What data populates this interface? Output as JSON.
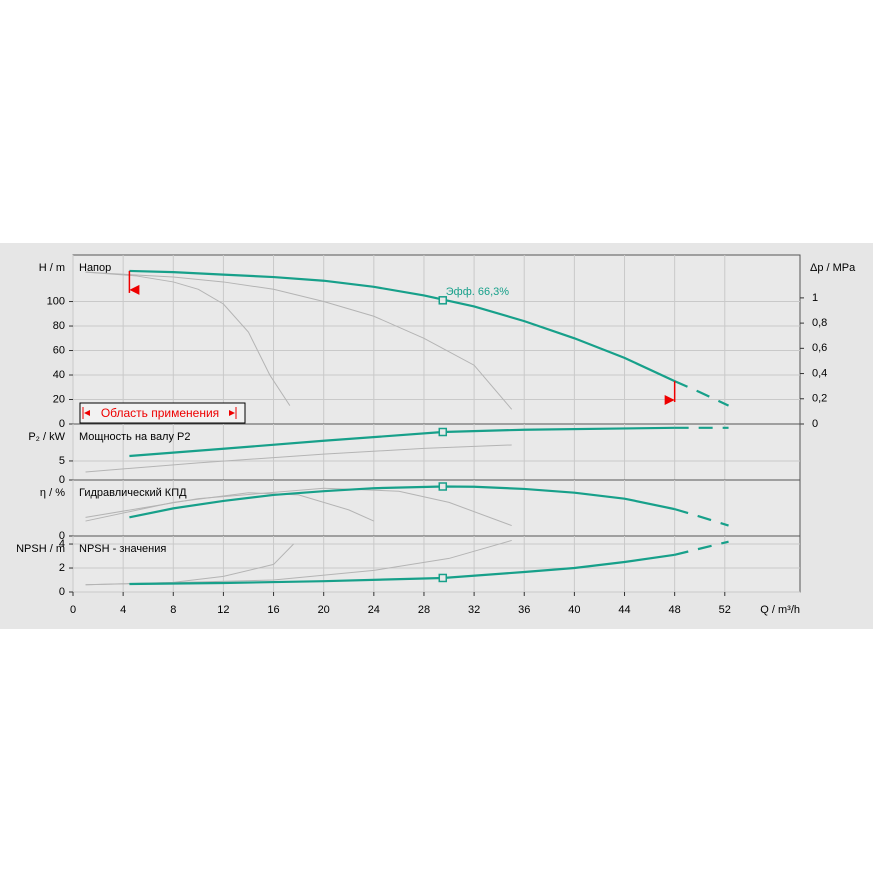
{
  "chart_data": [
    {
      "type": "line",
      "label": "Напор",
      "ylabel": "H / m",
      "ylim": [
        0,
        138
      ],
      "yticks": [
        0,
        20,
        40,
        60,
        80,
        100
      ],
      "y2label": "Δp / MPa",
      "y2lim": [
        0,
        1.34
      ],
      "y2ticks": [
        0,
        {
          "value": 0.2,
          "label": "0,2"
        },
        {
          "value": 0.4,
          "label": "0,4"
        },
        {
          "value": 0.6,
          "label": "0,6"
        },
        {
          "value": 0.8,
          "label": "0,8"
        },
        1
      ],
      "application_range": [
        4.5,
        48
      ],
      "range_label": "Область применения",
      "annotation": "Эфф.  66,3%",
      "series": [
        {
          "color": "#b4b4b4",
          "style": "solid",
          "x": [
            1,
            5,
            8,
            10,
            12,
            14,
            15.7,
            17.3
          ],
          "values": [
            124,
            121,
            116,
            110,
            98,
            75,
            40,
            15
          ]
        },
        {
          "color": "#b4b4b4",
          "style": "solid",
          "x": [
            1,
            8,
            12,
            16,
            20,
            24,
            28,
            32,
            35
          ],
          "values": [
            124,
            120,
            116,
            110,
            100,
            88,
            70,
            48,
            12
          ]
        },
        {
          "color": "#17a08a",
          "style": "solid",
          "x": [
            4.5,
            8,
            12,
            16,
            20,
            24,
            28,
            32,
            36,
            40,
            44,
            48
          ],
          "values": [
            125,
            124,
            122,
            120,
            117,
            112,
            105,
            96,
            84,
            70,
            54,
            35
          ]
        },
        {
          "color": "#17a08a",
          "style": "dashed",
          "x": [
            48,
            50,
            52.3
          ],
          "values": [
            35,
            26,
            15
          ]
        },
        {
          "color": "#17a08a",
          "style": "marker",
          "x": [
            29.5
          ],
          "values": [
            101
          ]
        }
      ]
    },
    {
      "type": "line",
      "label": "Мощность на валу P2",
      "ylabel": "P₂ / kW",
      "ylim": [
        0,
        14.7
      ],
      "yticks": [
        0,
        5
      ],
      "series": [
        {
          "color": "#b4b4b4",
          "style": "solid",
          "x": [
            1,
            10,
            20,
            28,
            35
          ],
          "values": [
            2.1,
            4.5,
            6.8,
            8.3,
            9.2
          ]
        },
        {
          "color": "#17a08a",
          "style": "solid",
          "x": [
            4.5,
            12,
            20,
            29.5,
            36,
            48
          ],
          "values": [
            6.3,
            8.2,
            10.3,
            12.6,
            13.2,
            13.7
          ]
        },
        {
          "color": "#17a08a",
          "style": "dashed",
          "x": [
            48,
            52.3
          ],
          "values": [
            13.7,
            13.7
          ]
        },
        {
          "color": "#17a08a",
          "style": "marker",
          "x": [
            29.5
          ],
          "values": [
            12.6
          ]
        }
      ]
    },
    {
      "type": "line",
      "label": "Гидравлический КПД",
      "ylabel": "η / %",
      "ylim": [
        0,
        75
      ],
      "yticks": [
        0
      ],
      "series": [
        {
          "color": "#b4b4b4",
          "style": "solid",
          "x": [
            1,
            8,
            14,
            18,
            22,
            24
          ],
          "values": [
            20,
            45,
            58,
            55,
            35,
            20
          ]
        },
        {
          "color": "#b4b4b4",
          "style": "solid",
          "x": [
            1,
            10,
            20,
            26,
            30,
            35
          ],
          "values": [
            25,
            50,
            64,
            60,
            45,
            14
          ]
        },
        {
          "color": "#17a08a",
          "style": "solid",
          "x": [
            4.5,
            8,
            12,
            16,
            20,
            24,
            29.5,
            32,
            36,
            40,
            44,
            48
          ],
          "values": [
            25,
            37,
            47,
            55,
            60,
            64,
            66.3,
            66,
            63,
            58,
            50,
            36
          ]
        },
        {
          "color": "#17a08a",
          "style": "dashed",
          "x": [
            48,
            50,
            52.3
          ],
          "values": [
            36,
            26,
            14
          ]
        },
        {
          "color": "#17a08a",
          "style": "marker",
          "x": [
            29.5
          ],
          "values": [
            66.3
          ]
        }
      ]
    },
    {
      "type": "line",
      "label": "NPSH - значения",
      "ylabel": "NPSH / m",
      "ylim": [
        0,
        4.67
      ],
      "yticks": [
        0,
        2,
        4
      ],
      "xlabel": "Q / m³/h",
      "xlim": [
        0,
        58
      ],
      "xticks": [
        0,
        4,
        8,
        12,
        16,
        20,
        24,
        28,
        32,
        36,
        40,
        44,
        48,
        52
      ],
      "series": [
        {
          "color": "#b4b4b4",
          "style": "solid",
          "x": [
            1,
            8,
            12,
            16,
            17.6
          ],
          "values": [
            0.6,
            0.8,
            1.3,
            2.3,
            4.0
          ]
        },
        {
          "color": "#b4b4b4",
          "style": "solid",
          "x": [
            1,
            16,
            24,
            30,
            35
          ],
          "values": [
            0.6,
            1.0,
            1.8,
            2.8,
            4.3
          ]
        },
        {
          "color": "#17a08a",
          "style": "solid",
          "x": [
            4.5,
            12,
            20,
            29.5,
            36,
            40,
            44,
            48
          ],
          "values": [
            0.67,
            0.75,
            0.9,
            1.17,
            1.67,
            2.0,
            2.5,
            3.1
          ]
        },
        {
          "color": "#17a08a",
          "style": "dashed",
          "x": [
            48,
            52.3
          ],
          "values": [
            3.1,
            4.2
          ]
        },
        {
          "color": "#17a08a",
          "style": "marker",
          "x": [
            29.5
          ],
          "values": [
            1.17
          ]
        }
      ]
    }
  ]
}
